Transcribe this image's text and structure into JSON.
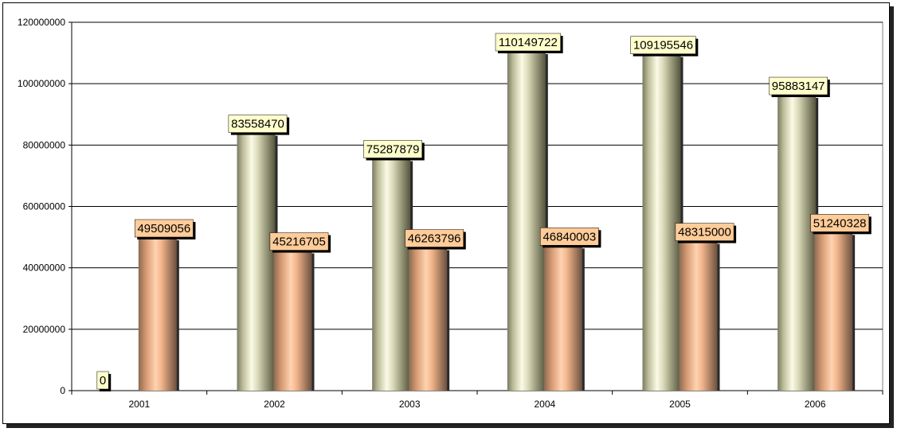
{
  "chart_data": {
    "type": "bar",
    "categories": [
      "2001",
      "2002",
      "2003",
      "2004",
      "2005",
      "2006"
    ],
    "series": [
      {
        "values": [
          0,
          83558470,
          75287879,
          110149722,
          109195546,
          95883147
        ],
        "color": "#c8c8a0",
        "label_bg": "#ffffcc"
      },
      {
        "values": [
          49509056,
          45216705,
          46263796,
          46840003,
          48315000,
          51240328
        ],
        "color": "#f4b48a",
        "label_bg": "#ffcc99"
      }
    ],
    "y_ticks": [
      "0",
      "20000000",
      "40000000",
      "60000000",
      "80000000",
      "100000000",
      "120000000"
    ],
    "ylim": [
      0,
      120000000
    ],
    "grid": true,
    "legend": "none",
    "data_labels": [
      [
        "0",
        "83558470",
        "75287879",
        "110149722",
        "109195546",
        "95883147"
      ],
      [
        "49509056",
        "45216705",
        "46263796",
        "46840003",
        "48315000",
        "51240328"
      ]
    ]
  }
}
